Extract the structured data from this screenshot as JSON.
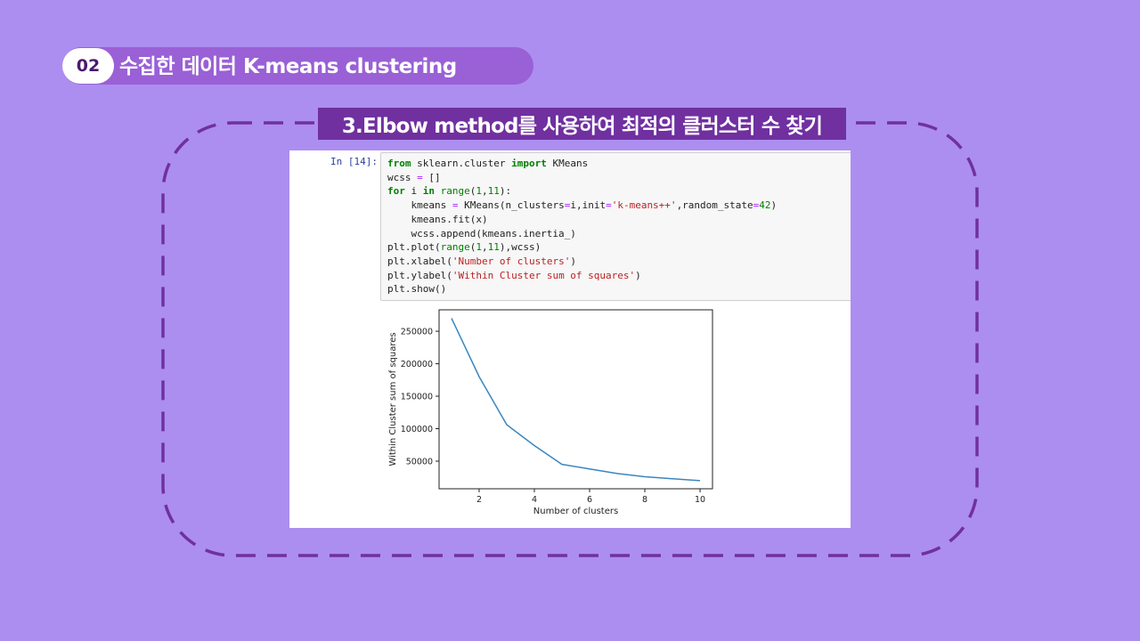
{
  "slide": {
    "section_number": "02",
    "section_title": "수집한 데이터 K-means clustering",
    "subtitle": "3.Elbow method를 사용하여 최적의 클러스터 수 찾기",
    "colors": {
      "background": "#ac8ef0",
      "pill": "#9a60d6",
      "accent": "#7030a0"
    }
  },
  "notebook": {
    "prompt": "In [14]:",
    "code_lines": [
      [
        [
          "kw",
          "from"
        ],
        [
          "t",
          " sklearn.cluster "
        ],
        [
          "kw",
          "import"
        ],
        [
          "t",
          " KMeans"
        ]
      ],
      [
        [
          "t",
          "wcss "
        ],
        [
          "op",
          "="
        ],
        [
          "t",
          " []"
        ]
      ],
      [
        [
          "kw",
          "for"
        ],
        [
          "t",
          " i "
        ],
        [
          "kw",
          "in"
        ],
        [
          "t",
          " "
        ],
        [
          "bi",
          "range"
        ],
        [
          "t",
          "("
        ],
        [
          "nm",
          "1"
        ],
        [
          "t",
          ","
        ],
        [
          "nm",
          "11"
        ],
        [
          "t",
          "):"
        ]
      ],
      [
        [
          "t",
          "    kmeans "
        ],
        [
          "op",
          "="
        ],
        [
          "t",
          " KMeans(n_clusters"
        ],
        [
          "op",
          "="
        ],
        [
          "t",
          "i,init"
        ],
        [
          "op",
          "="
        ],
        [
          "st",
          "'k-means++'"
        ],
        [
          "t",
          ",random_state"
        ],
        [
          "op",
          "="
        ],
        [
          "nm",
          "42"
        ],
        [
          "t",
          ")"
        ]
      ],
      [
        [
          "t",
          "    kmeans.fit(x)"
        ]
      ],
      [
        [
          "t",
          "    wcss.append(kmeans.inertia_)"
        ]
      ],
      [
        [
          "t",
          "plt.plot("
        ],
        [
          "bi",
          "range"
        ],
        [
          "t",
          "("
        ],
        [
          "nm",
          "1"
        ],
        [
          "t",
          ","
        ],
        [
          "nm",
          "11"
        ],
        [
          "t",
          "),wcss)"
        ]
      ],
      [
        [
          "t",
          "plt.xlabel("
        ],
        [
          "st",
          "'Number of clusters'"
        ],
        [
          "t",
          ")"
        ]
      ],
      [
        [
          "t",
          "plt.ylabel("
        ],
        [
          "st",
          "'Within Cluster sum of squares'"
        ],
        [
          "t",
          ")"
        ]
      ],
      [
        [
          "t",
          "plt.show()"
        ]
      ]
    ]
  },
  "chart_data": {
    "type": "line",
    "x": [
      1,
      2,
      3,
      4,
      5,
      6,
      7,
      8,
      9,
      10
    ],
    "series": [
      {
        "values": [
          270000,
          180000,
          106000,
          74000,
          45000,
          38000,
          31000,
          26000,
          23000,
          20000
        ],
        "color": "#3a87c0"
      }
    ],
    "xlabel": "Number of clusters",
    "ylabel": "Within Cluster sum of squares",
    "xticks": [
      "2",
      "4",
      "6",
      "8",
      "10"
    ],
    "yticks": [
      "50000",
      "100000",
      "150000",
      "200000",
      "250000"
    ],
    "xlim": [
      0.55,
      10.45
    ],
    "ylim": [
      7500,
      283000
    ],
    "grid": false
  }
}
